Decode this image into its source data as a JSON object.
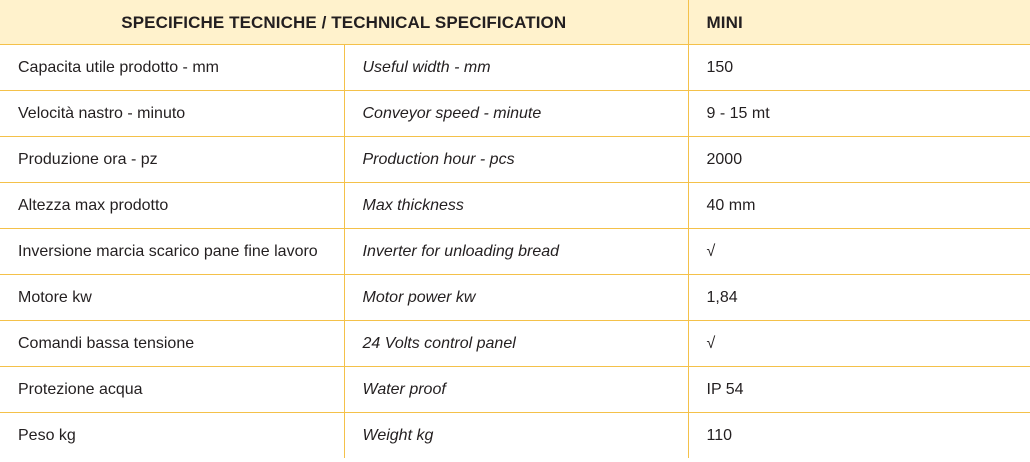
{
  "table": {
    "header": {
      "title": "SPECIFICHE TECNICHE / TECHNICAL SPECIFICATION",
      "model": "MINI"
    },
    "rows": [
      {
        "label_it": "Capacita utile prodotto - mm",
        "label_en": "Useful width - mm",
        "value": "150"
      },
      {
        "label_it": "Velocità nastro - minuto",
        "label_en": "Conveyor speed - minute",
        "value": "9 - 15 mt"
      },
      {
        "label_it": "Produzione ora - pz",
        "label_en": "Production hour - pcs",
        "value": "2000"
      },
      {
        "label_it": "Altezza max prodotto",
        "label_en": "Max thickness",
        "value": "40 mm"
      },
      {
        "label_it": "Inversione marcia scarico pane fine lavoro",
        "label_en": "Inverter for unloading bread",
        "value": "√"
      },
      {
        "label_it": "Motore kw",
        "label_en": "Motor power kw",
        "value": "1,84"
      },
      {
        "label_it": "Comandi bassa tensione",
        "label_en": "24 Volts control panel",
        "value": "√"
      },
      {
        "label_it": "Protezione acqua",
        "label_en": "Water proof",
        "value": "IP 54"
      },
      {
        "label_it": "Peso kg",
        "label_en": "Weight kg",
        "value": "110"
      }
    ]
  },
  "colors": {
    "header_background": "#fff2cc",
    "border": "#f4c14a",
    "text": "#231f20"
  }
}
